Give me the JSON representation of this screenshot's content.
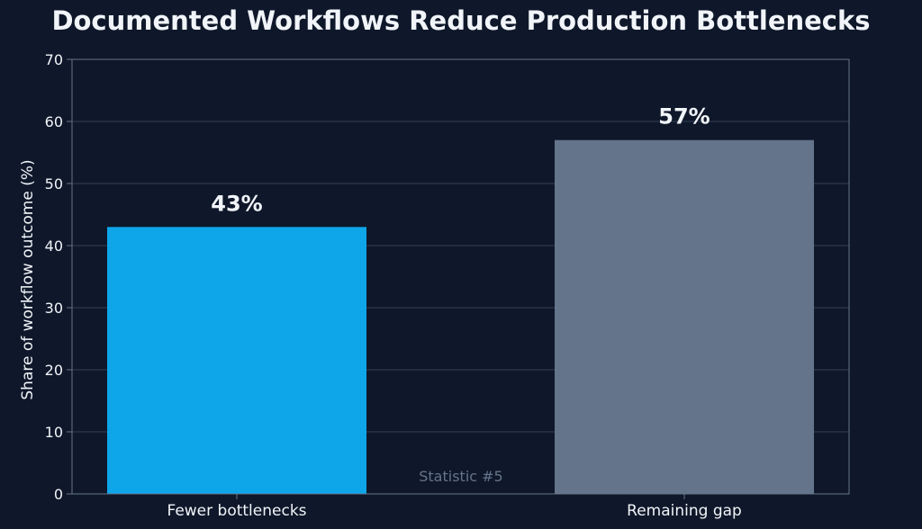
{
  "chart_data": {
    "type": "bar",
    "title": "Documented Workflows Reduce Production Bottlenecks",
    "xlabel": "",
    "ylabel": "Share of workflow outcome (%)",
    "categories": [
      "Fewer bottlenecks",
      "Remaining gap"
    ],
    "values": [
      43,
      57
    ],
    "value_labels": [
      "43%",
      "57%"
    ],
    "colors": [
      "#0ea5e9",
      "#64748b"
    ],
    "ylim": [
      0,
      70
    ],
    "yticks": [
      0,
      10,
      20,
      30,
      40,
      50,
      60,
      70
    ],
    "grid": true,
    "annotation": "Statistic #5"
  },
  "theme": {
    "background": "#0f172a",
    "text": "#f1f5f9",
    "grid": "#334155",
    "axis": "#64748b",
    "annotation": "#64748b"
  }
}
